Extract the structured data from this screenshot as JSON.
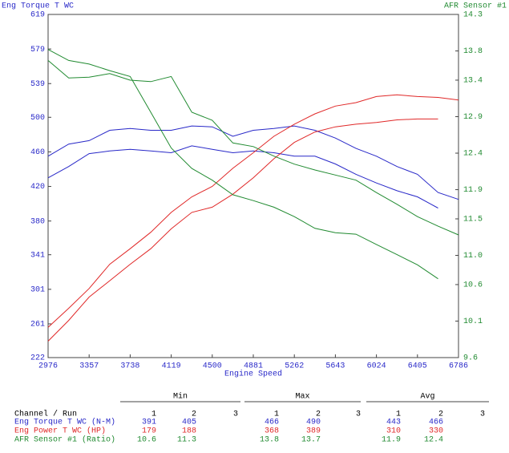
{
  "chart_data": {
    "type": "line",
    "title": "Eng Torque T WC",
    "y2_title": "AFR Sensor #1",
    "xlabel": "Engine Speed",
    "x": [
      2976,
      3167,
      3357,
      3548,
      3738,
      3929,
      4119,
      4310,
      4500,
      4691,
      4881,
      5072,
      5262,
      5453,
      5643,
      5834,
      6024,
      6215,
      6405,
      6596,
      6786
    ],
    "xlim": [
      2976,
      6786
    ],
    "xticks": [
      2976,
      3357,
      3738,
      4119,
      4500,
      4881,
      5262,
      5643,
      6024,
      6405,
      6786
    ],
    "ylim": [
      222,
      619
    ],
    "yticks": [
      222,
      261,
      301,
      341,
      380,
      420,
      460,
      500,
      539,
      579,
      619
    ],
    "y2lim": [
      9.6,
      14.3
    ],
    "y2ticks": [
      9.6,
      10.1,
      10.6,
      {
        "value": 11,
        "label": "11.0"
      },
      11.5,
      11.9,
      12.4,
      12.9,
      13.4,
      13.8,
      14.3
    ],
    "grid": false,
    "series": [
      {
        "color": "#2828c8",
        "values": [
          430,
          443,
          458,
          461,
          463,
          461,
          459,
          467,
          463,
          459,
          461,
          459,
          455,
          455,
          446,
          434,
          424,
          415,
          408,
          395,
          null
        ]
      },
      {
        "color": "#2828c8",
        "values": [
          455,
          469,
          473,
          485,
          487,
          485,
          485,
          490,
          489,
          478,
          485,
          487,
          490,
          485,
          476,
          464,
          455,
          443,
          434,
          413,
          405
        ]
      },
      {
        "color": "#e02828",
        "values": [
          241,
          265,
          292,
          311,
          330,
          348,
          371,
          390,
          396,
          411,
          430,
          452,
          471,
          483,
          489,
          492,
          494,
          497,
          498,
          498,
          null
        ]
      },
      {
        "color": "#e02828",
        "values": [
          257,
          279,
          302,
          330,
          348,
          367,
          390,
          408,
          420,
          441,
          459,
          478,
          492,
          504,
          513,
          517,
          524,
          526,
          524,
          523,
          520
        ]
      },
      {
        "color": "#208a30",
        "axis": "y2",
        "values": [
          13.82,
          13.67,
          13.62,
          13.53,
          13.45,
          12.96,
          12.47,
          12.19,
          12.03,
          11.83,
          11.75,
          11.66,
          11.53,
          11.37,
          11.31,
          11.29,
          11.15,
          11.01,
          10.87,
          10.68,
          null
        ]
      },
      {
        "color": "#208a30",
        "axis": "y2",
        "values": [
          13.67,
          13.43,
          13.44,
          13.49,
          13.4,
          13.38,
          13.45,
          12.96,
          12.85,
          12.54,
          12.49,
          12.36,
          12.25,
          12.17,
          12.1,
          12.03,
          11.86,
          11.7,
          11.53,
          11.4,
          11.28
        ]
      }
    ]
  },
  "table": {
    "groups": [
      "Min",
      "Max",
      "Avg"
    ],
    "first_header": "Channel / Run",
    "runs": [
      "1",
      "2",
      "3"
    ],
    "rows": [
      {
        "name": "Eng Torque T WC (N-M)",
        "color": "#2828c8",
        "values": [
          391,
          405,
          466,
          490,
          443,
          466
        ]
      },
      {
        "name": "Eng Power T WC (HP)",
        "color": "#e02828",
        "values": [
          179,
          188,
          368,
          389,
          310,
          330
        ]
      },
      {
        "name": "AFR Sensor #1 (Ratio)",
        "color": "#208a30",
        "values": [
          10.6,
          11.3,
          13.8,
          13.7,
          11.9,
          12.4
        ]
      }
    ]
  }
}
